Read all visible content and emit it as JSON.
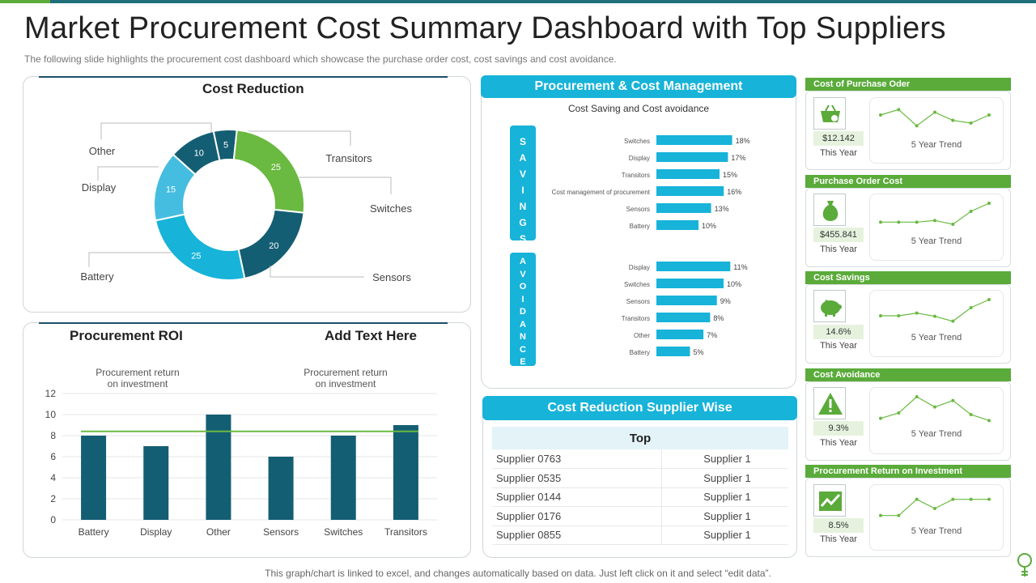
{
  "title": "Market Procurement Cost Summary Dashboard with Top Suppliers",
  "subtitle": "The following slide highlights the procurement  cost dashboard which showcase the purchase order cost, cost savings and cost avoidance.",
  "footer": "This graph/chart is linked to excel,  and changes automatically based on data. Just left click on it and select “edit data”.",
  "colors": {
    "teal_dark": "#145e73",
    "cyan": "#17b3d9",
    "light_blue": "#45bde0",
    "green": "#6ab940",
    "kpi_green": "#5aab3a"
  },
  "cost_reduction": {
    "title": "Cost Reduction"
  },
  "procurement_roi": {
    "title": "Procurement ROI",
    "add_text": "Add Text Here",
    "annotation_left": [
      "Procurement return",
      "on investment"
    ],
    "annotation_right": [
      "Procurement return",
      "on investment"
    ]
  },
  "procurement_cost_management": {
    "title": "Procurement & Cost Management",
    "chart_title": "Cost Saving and Cost avoidance",
    "savings_label": "SAVINGS",
    "avoidance_label": "AVOIDANCE"
  },
  "chart_data": [
    {
      "id": "cost_reduction_donut",
      "type": "pie",
      "title": "Cost Reduction",
      "slices": [
        {
          "label": "Transitors",
          "value": 5,
          "color": "#145e73"
        },
        {
          "label": "Switches",
          "value": 25,
          "color": "#6ab940"
        },
        {
          "label": "Sensors",
          "value": 20,
          "color": "#145e73"
        },
        {
          "label": "Battery",
          "value": 25,
          "color": "#17b3d9"
        },
        {
          "label": "Display",
          "value": 15,
          "color": "#45bde0"
        },
        {
          "label": "Other",
          "value": 10,
          "color": "#145e73"
        }
      ]
    },
    {
      "id": "procurement_roi_bar",
      "type": "bar",
      "title": "Procurement ROI",
      "categories": [
        "Battery",
        "Display",
        "Other",
        "Sensors",
        "Switches",
        "Transitors"
      ],
      "values": [
        8,
        7,
        10,
        6,
        8,
        9
      ],
      "reference_line": 8.4,
      "yticks": [
        0,
        2,
        4,
        6,
        8,
        10,
        12
      ],
      "ylim": [
        0,
        12
      ],
      "grid": true
    },
    {
      "id": "savings_bar",
      "type": "bar",
      "orientation": "horizontal",
      "categories": [
        "Switches",
        "Display",
        "Transitors",
        "Cost management of procurement",
        "Sensors",
        "Battery"
      ],
      "values": [
        18,
        17,
        15,
        16,
        13,
        10
      ],
      "labels": [
        "18%",
        "17%",
        "15%",
        "16%",
        "13%",
        "10%"
      ],
      "unit": "%"
    },
    {
      "id": "avoidance_bar",
      "type": "bar",
      "orientation": "horizontal",
      "categories": [
        "Display",
        "Switches",
        "Sensors",
        "Transitors",
        "Other",
        "Battery"
      ],
      "values": [
        11,
        10,
        9,
        8,
        7,
        5
      ],
      "labels": [
        "11%",
        "10%",
        "9%",
        "8%",
        "7%",
        "5%"
      ],
      "unit": "%"
    },
    {
      "id": "trend_purchase_order",
      "type": "line",
      "title": "5 Year Trend",
      "x": [
        1,
        2,
        3,
        4,
        5,
        6,
        7
      ],
      "values": [
        3,
        4,
        1,
        3.5,
        2,
        1.5,
        3
      ]
    },
    {
      "id": "trend_purchase_order_cost",
      "type": "line",
      "title": "5 Year Trend",
      "x": [
        1,
        2,
        3,
        4,
        5,
        6,
        7
      ],
      "values": [
        1,
        1,
        1,
        1.3,
        0.6,
        3,
        4.5
      ]
    },
    {
      "id": "trend_cost_savings",
      "type": "line",
      "title": "5 Year Trend",
      "x": [
        1,
        2,
        3,
        4,
        5,
        6,
        7
      ],
      "values": [
        1.5,
        1.5,
        2,
        1.4,
        0.5,
        3,
        4.5
      ]
    },
    {
      "id": "trend_cost_avoidance",
      "type": "line",
      "title": "5 Year Trend",
      "x": [
        1,
        2,
        3,
        4,
        5,
        6,
        7
      ],
      "values": [
        0.5,
        1.5,
        4.5,
        2.6,
        3.8,
        1.2,
        0.1
      ]
    },
    {
      "id": "trend_roi",
      "type": "line",
      "title": "5 Year Trend",
      "x": [
        1,
        2,
        3,
        4,
        5,
        6,
        7
      ],
      "values": [
        0.5,
        0.5,
        3.5,
        1.8,
        3.5,
        3.5,
        3.5
      ]
    }
  ],
  "kpis": [
    {
      "title": "Cost of Purchase Oder",
      "value": "$12.142",
      "period": "This Year",
      "trend_label": "5 Year Trend",
      "icon": "basket-icon"
    },
    {
      "title": "Purchase Order Cost",
      "value": "$455.841",
      "period": "This Year",
      "trend_label": "5 Year Trend",
      "icon": "money-bag-icon"
    },
    {
      "title": "Cost Savings",
      "value": "14.6%",
      "period": "This Year",
      "trend_label": "5 Year Trend",
      "icon": "piggy-bank-icon"
    },
    {
      "title": "Cost Avoidance",
      "value": "9.3%",
      "period": "This Year",
      "trend_label": "5 Year Trend",
      "icon": "warning-icon"
    },
    {
      "title": "Procurement Return on Investment",
      "value": "8.5%",
      "period": "This Year",
      "trend_label": "5 Year Trend",
      "icon": "growth-chart-icon"
    }
  ],
  "supplier_wise": {
    "title": "Cost Reduction Supplier Wise",
    "header": "Top",
    "rows": [
      [
        "Supplier 0763",
        "Supplier 1"
      ],
      [
        "Supplier 0535",
        "Supplier 1"
      ],
      [
        "Supplier 0144",
        "Supplier 1"
      ],
      [
        "Supplier 0176",
        "Supplier 1"
      ],
      [
        "Supplier 0855",
        "Supplier 1"
      ]
    ]
  }
}
